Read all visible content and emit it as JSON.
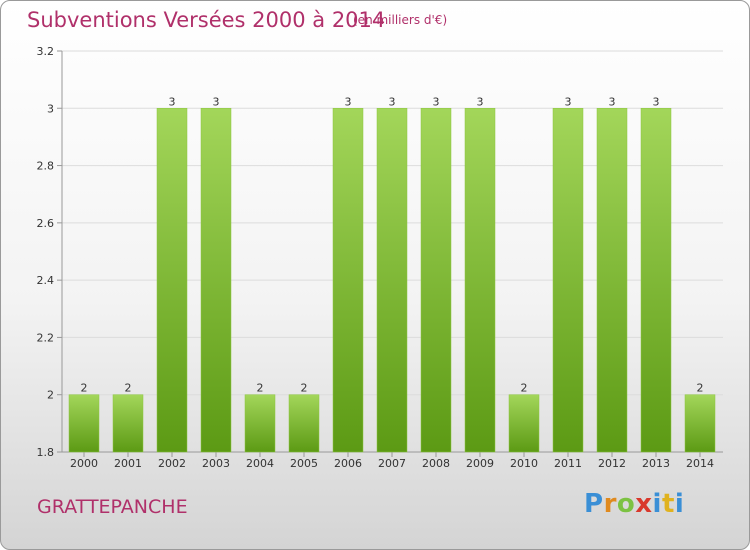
{
  "header": {
    "title": "Subventions Versées 2000 à 2014",
    "unit": "(en milliers d'€)"
  },
  "footer": {
    "town": "GRATTEPANCHE",
    "logo": {
      "p": "P",
      "r": "r",
      "o": "o",
      "x": "x",
      "i": "i",
      "t": "t",
      "i2": "i"
    }
  },
  "colors": {
    "bar_top": "#a3d65a",
    "bar_bottom": "#5c9a14",
    "title": "#b0306a"
  },
  "chart_data": {
    "type": "bar",
    "title": "Subventions Versées 2000 à 2014",
    "subtitle": "(en milliers d'€)",
    "categories": [
      "2000",
      "2001",
      "2002",
      "2003",
      "2004",
      "2005",
      "2006",
      "2007",
      "2008",
      "2009",
      "2010",
      "2011",
      "2012",
      "2013",
      "2014"
    ],
    "values": [
      2,
      2,
      3,
      3,
      2,
      2,
      3,
      3,
      3,
      3,
      2,
      3,
      3,
      3,
      2
    ],
    "data_labels": [
      "2",
      "2",
      "3",
      "3",
      "2",
      "2",
      "3",
      "3",
      "3",
      "3",
      "2",
      "3",
      "3",
      "3",
      "2"
    ],
    "yticks": [
      "1.8",
      "2",
      "2.2",
      "2.4",
      "2.6",
      "2.8",
      "3",
      "3.2"
    ],
    "ylim": [
      1.8,
      3.2
    ],
    "grid": true,
    "legend": "none"
  }
}
